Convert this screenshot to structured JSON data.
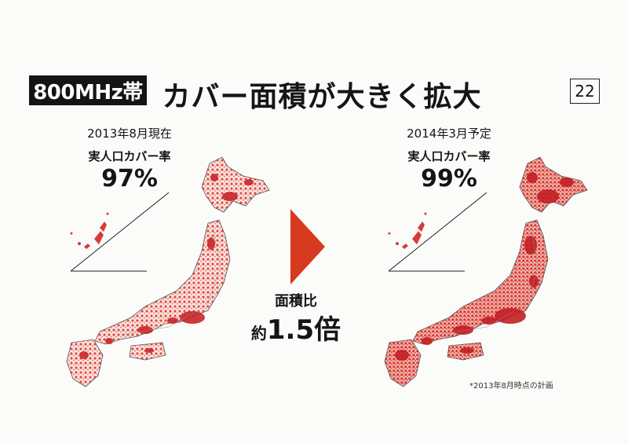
{
  "header": {
    "band_label": "800MHz帯",
    "title": "カバー面積が大きく拡大",
    "page_number": "22"
  },
  "left_panel": {
    "date": "2013年8月現在",
    "label": "実人口カバー率",
    "percentage": "97%"
  },
  "right_panel": {
    "date": "2014年3月予定",
    "label": "実人口カバー率",
    "percentage": "99%"
  },
  "comparison": {
    "label": "面積比",
    "prefix": "約",
    "value": "1.5倍"
  },
  "footnote": "*2013年8月時点の計画",
  "colors": {
    "coverage": "#d83a3a",
    "arrow": "#d73a1e",
    "badge_bg": "#141414"
  },
  "icons": {
    "arrow": "right-triangle-arrow",
    "maps": "japan-coverage-map"
  }
}
